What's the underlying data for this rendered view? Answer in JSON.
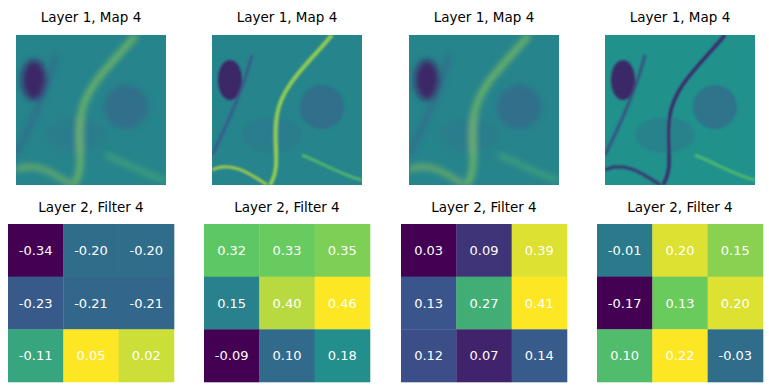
{
  "chart_data": [
    {
      "type": "image",
      "title": "Layer 1, Map 4"
    },
    {
      "type": "image",
      "title": "Layer 1, Map 4"
    },
    {
      "type": "image",
      "title": "Layer 1, Map 4"
    },
    {
      "type": "image",
      "title": "Layer 1, Map 4"
    },
    {
      "type": "heatmap",
      "title": "Layer 2, Filter 4",
      "data_labels": true,
      "cells": [
        [
          -0.34,
          -0.2,
          -0.2
        ],
        [
          -0.23,
          -0.21,
          -0.21
        ],
        [
          -0.11,
          0.05,
          0.02
        ]
      ],
      "value_labels": [
        [
          "-0.34",
          "-0.20",
          "-0.20"
        ],
        [
          "-0.23",
          "-0.21",
          "-0.21"
        ],
        [
          "-0.11",
          "0.05",
          "0.02"
        ]
      ]
    },
    {
      "type": "heatmap",
      "title": "Layer 2, Filter 4",
      "data_labels": true,
      "cells": [
        [
          0.32,
          0.33,
          0.35
        ],
        [
          0.15,
          0.4,
          0.46
        ],
        [
          -0.09,
          0.1,
          0.18
        ]
      ],
      "value_labels": [
        [
          "0.32",
          "0.33",
          "0.35"
        ],
        [
          "0.15",
          "0.40",
          "0.46"
        ],
        [
          "-0.09",
          "0.10",
          "0.18"
        ]
      ]
    },
    {
      "type": "heatmap",
      "title": "Layer 2, Filter 4",
      "data_labels": true,
      "cells": [
        [
          0.03,
          0.09,
          0.39
        ],
        [
          0.13,
          0.27,
          0.41
        ],
        [
          0.12,
          0.07,
          0.14
        ]
      ],
      "value_labels": [
        [
          "0.03",
          "0.09",
          "0.39"
        ],
        [
          "0.13",
          "0.27",
          "0.41"
        ],
        [
          "0.12",
          "0.07",
          "0.14"
        ]
      ]
    },
    {
      "type": "heatmap",
      "title": "Layer 2, Filter 4",
      "data_labels": true,
      "cells": [
        [
          -0.01,
          0.2,
          0.15
        ],
        [
          -0.17,
          0.13,
          0.2
        ],
        [
          0.1,
          0.22,
          -0.03
        ]
      ],
      "value_labels": [
        [
          "-0.01",
          "0.20",
          "0.15"
        ],
        [
          "-0.17",
          "0.13",
          "0.20"
        ],
        [
          "0.10",
          "0.22",
          "-0.03"
        ]
      ]
    }
  ]
}
